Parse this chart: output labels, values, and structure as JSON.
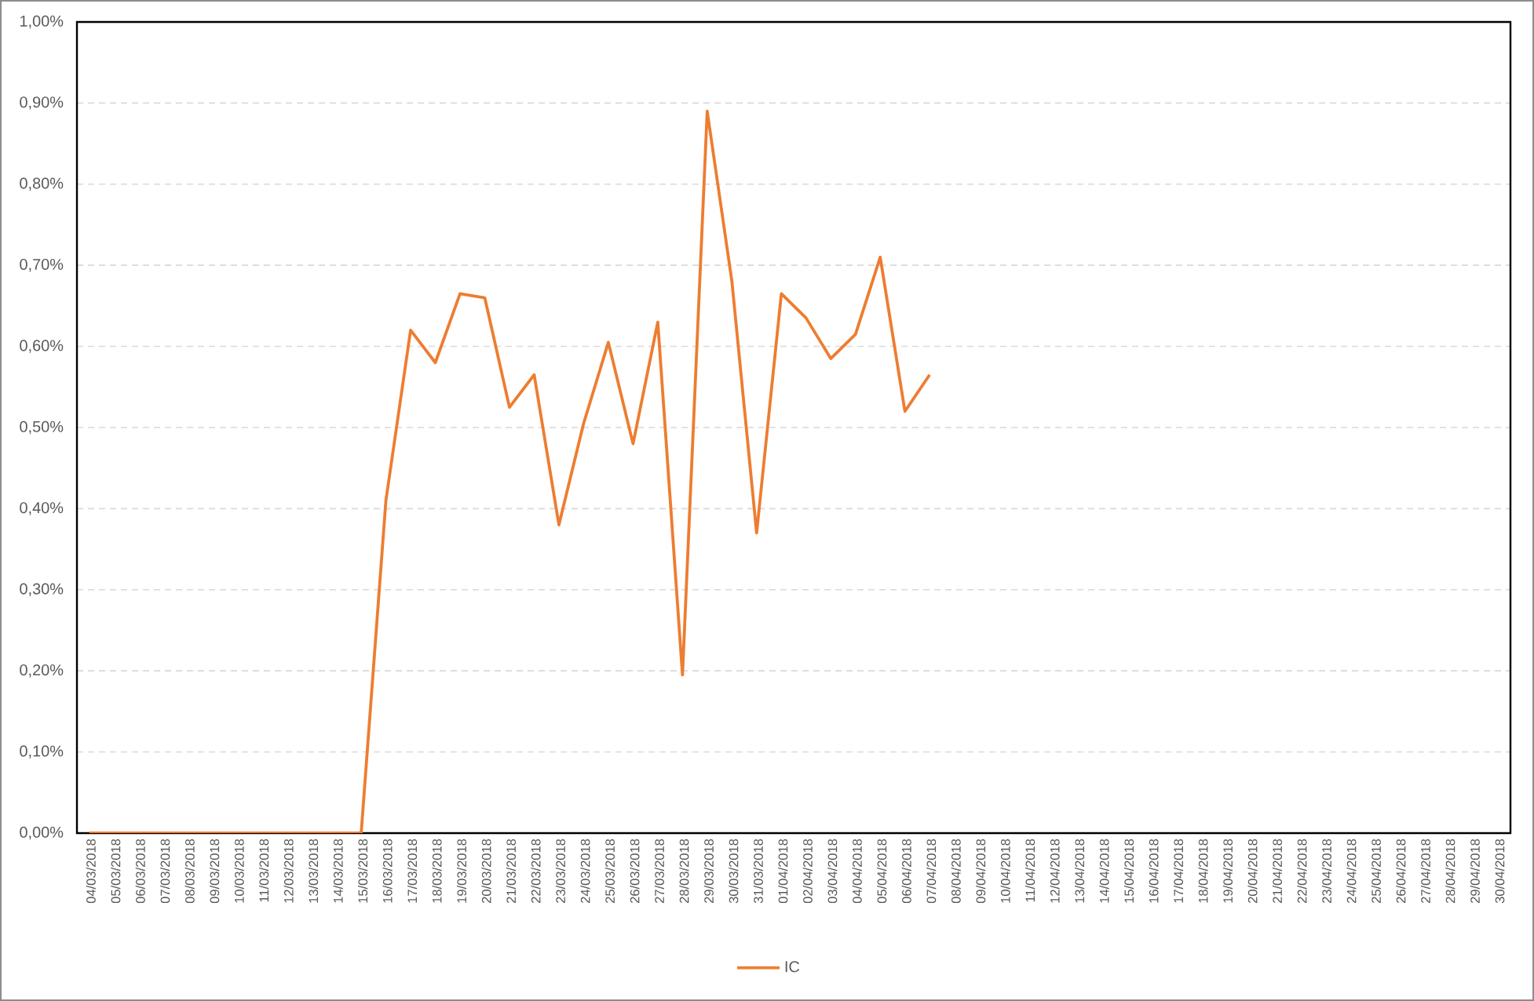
{
  "chart_data": {
    "type": "line",
    "categories": [
      "04/03/2018",
      "05/03/2018",
      "06/03/2018",
      "07/03/2018",
      "08/03/2018",
      "09/03/2018",
      "10/03/2018",
      "11/03/2018",
      "12/03/2018",
      "13/03/2018",
      "14/03/2018",
      "15/03/2018",
      "16/03/2018",
      "17/03/2018",
      "18/03/2018",
      "19/03/2018",
      "20/03/2018",
      "21/03/2018",
      "22/03/2018",
      "23/03/2018",
      "24/03/2018",
      "25/03/2018",
      "26/03/2018",
      "27/03/2018",
      "28/03/2018",
      "29/03/2018",
      "30/03/2018",
      "31/03/2018",
      "01/04/2018",
      "02/04/2018",
      "03/04/2018",
      "04/04/2018",
      "05/04/2018",
      "06/04/2018",
      "07/04/2018",
      "08/04/2018",
      "09/04/2018",
      "10/04/2018",
      "11/04/2018",
      "12/04/2018",
      "13/04/2018",
      "14/04/2018",
      "15/04/2018",
      "16/04/2018",
      "17/04/2018",
      "18/04/2018",
      "19/04/2018",
      "20/04/2018",
      "21/04/2018",
      "22/04/2018",
      "23/04/2018",
      "24/04/2018",
      "25/04/2018",
      "26/04/2018",
      "27/04/2018",
      "28/04/2018",
      "29/04/2018",
      "30/04/2018"
    ],
    "series": [
      {
        "name": "IC",
        "color": "#ed7d31",
        "values": [
          0,
          0,
          0,
          0,
          0,
          0,
          0,
          0,
          0,
          0,
          0,
          0,
          0.41,
          0.62,
          0.58,
          0.665,
          0.66,
          0.525,
          0.565,
          0.38,
          0.505,
          0.605,
          0.48,
          0.63,
          0.195,
          0.89,
          0.68,
          0.37,
          0.665,
          0.635,
          0.585,
          0.615,
          0.71,
          0.52,
          0.565,
          null,
          null,
          null,
          null,
          null,
          null,
          null,
          null,
          null,
          null,
          null,
          null,
          null,
          null,
          null,
          null,
          null,
          null,
          null,
          null,
          null,
          null,
          null
        ]
      }
    ],
    "ylim": [
      0,
      1
    ],
    "yticks": [
      {
        "value": 0,
        "label": "0,00%"
      },
      {
        "value": 0.1,
        "label": "0,10%"
      },
      {
        "value": 0.2,
        "label": "0,20%"
      },
      {
        "value": 0.3,
        "label": "0,30%"
      },
      {
        "value": 0.4,
        "label": "0,40%"
      },
      {
        "value": 0.5,
        "label": "0,50%"
      },
      {
        "value": 0.6,
        "label": "0,60%"
      },
      {
        "value": 0.7,
        "label": "0,70%"
      },
      {
        "value": 0.8,
        "label": "0,80%"
      },
      {
        "value": 0.9,
        "label": "0,90%"
      },
      {
        "value": 1,
        "label": "1,00%"
      }
    ],
    "grid": "y",
    "legend": "bottom"
  }
}
